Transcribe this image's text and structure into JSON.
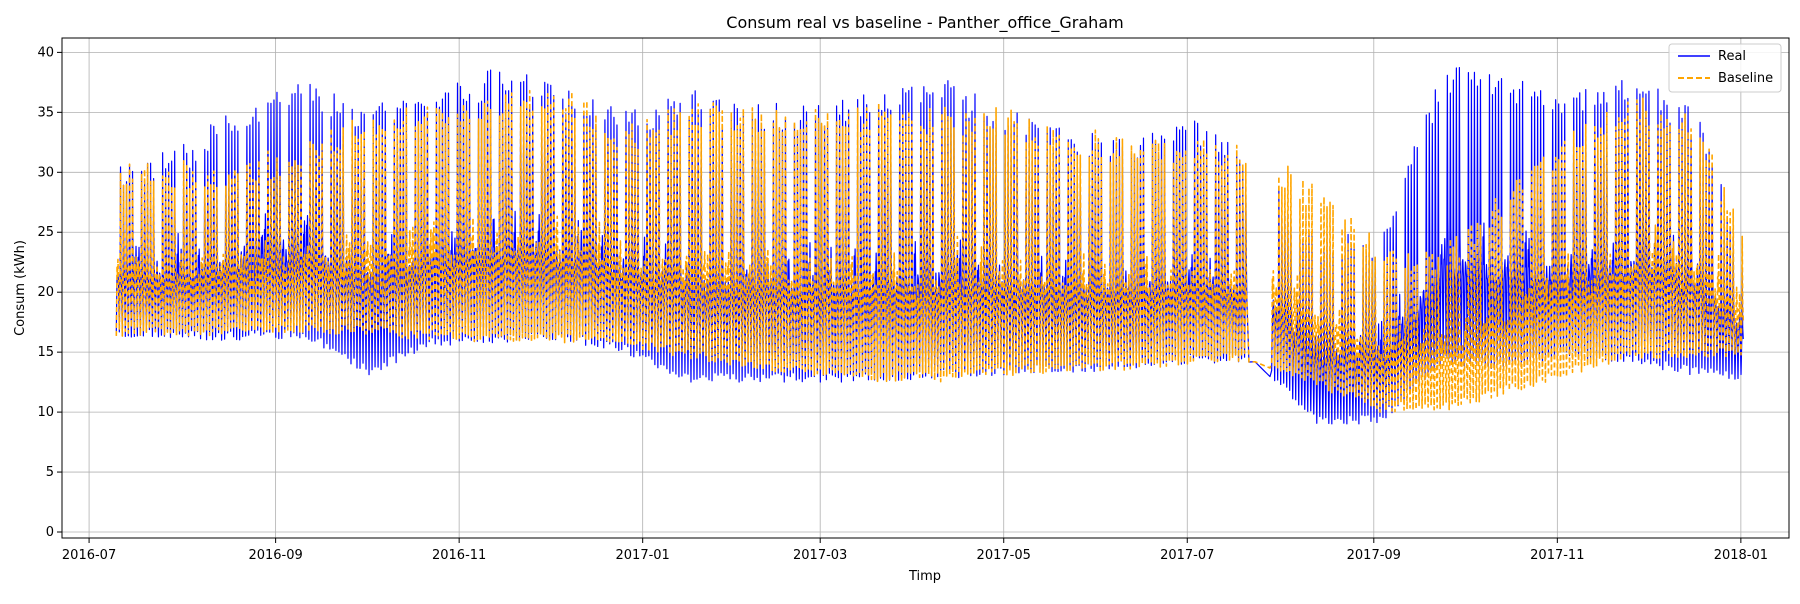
{
  "chart_data": {
    "type": "line",
    "title": "Consum real vs baseline - Panther_office_Graham",
    "xlabel": "Timp",
    "ylabel": "Consum (kWh)",
    "x_start": "2016-07-10",
    "x_end": "2018-01-01",
    "xlim": [
      "2016-06-22",
      "2018-01-17"
    ],
    "ylim": [
      -0.5,
      41.2
    ],
    "yticks": [
      0,
      5,
      10,
      15,
      20,
      25,
      30,
      35,
      40
    ],
    "xtick_labels": [
      "2016-07",
      "2016-09",
      "2016-11",
      "2017-01",
      "2017-03",
      "2017-05",
      "2017-07",
      "2017-09",
      "2017-11",
      "2018-01"
    ],
    "grid": true,
    "legend_position": "top-right",
    "series": [
      {
        "name": "Real",
        "color": "#0000ff",
        "style": "solid",
        "weekly": [
          {
            "date": "2016-07-10",
            "min": 16.3,
            "max": 31.0
          },
          {
            "date": "2016-07-31",
            "min": 16.0,
            "max": 32.2
          },
          {
            "date": "2016-08-21",
            "min": 16.0,
            "max": 36.0
          },
          {
            "date": "2016-09-11",
            "min": 16.2,
            "max": 38.0
          },
          {
            "date": "2016-10-02",
            "min": 13.0,
            "max": 35.5
          },
          {
            "date": "2016-10-23",
            "min": 15.5,
            "max": 37.0
          },
          {
            "date": "2016-11-13",
            "min": 15.8,
            "max": 38.7
          },
          {
            "date": "2016-12-04",
            "min": 16.0,
            "max": 37.5
          },
          {
            "date": "2016-12-25",
            "min": 15.0,
            "max": 35.0
          },
          {
            "date": "2017-01-15",
            "min": 12.5,
            "max": 37.0
          },
          {
            "date": "2017-02-05",
            "min": 12.5,
            "max": 36.0
          },
          {
            "date": "2017-02-26",
            "min": 12.5,
            "max": 35.5
          },
          {
            "date": "2017-03-19",
            "min": 12.5,
            "max": 37.0
          },
          {
            "date": "2017-04-09",
            "min": 12.8,
            "max": 38.0
          },
          {
            "date": "2017-04-30",
            "min": 13.0,
            "max": 35.5
          },
          {
            "date": "2017-05-21",
            "min": 13.3,
            "max": 33.5
          },
          {
            "date": "2017-06-11",
            "min": 13.5,
            "max": 33.0
          },
          {
            "date": "2017-07-02",
            "min": 14.0,
            "max": 34.5
          },
          {
            "date": "2017-07-23",
            "min": 14.2,
            "max": 31.0
          },
          {
            "date": "2017-08-13",
            "min": 9.0,
            "max": 25.0
          },
          {
            "date": "2017-09-03",
            "min": 9.0,
            "max": 25.0
          },
          {
            "date": "2017-09-24",
            "min": 14.0,
            "max": 39.0
          },
          {
            "date": "2017-10-15",
            "min": 13.5,
            "max": 38.0
          },
          {
            "date": "2017-11-05",
            "min": 14.5,
            "max": 36.5
          },
          {
            "date": "2017-11-26",
            "min": 14.0,
            "max": 38.5
          },
          {
            "date": "2017-12-17",
            "min": 13.0,
            "max": 35.0
          },
          {
            "date": "2018-01-01",
            "min": 12.7,
            "max": 24.0
          }
        ]
      },
      {
        "name": "Baseline",
        "color": "#ffa500",
        "style": "dashed",
        "weekly": [
          {
            "date": "2016-07-10",
            "min": 16.3,
            "max": 31.0
          },
          {
            "date": "2016-07-31",
            "min": 16.3,
            "max": 31.0
          },
          {
            "date": "2016-08-21",
            "min": 16.5,
            "max": 31.0
          },
          {
            "date": "2016-09-11",
            "min": 16.5,
            "max": 33.0
          },
          {
            "date": "2016-10-02",
            "min": 16.3,
            "max": 35.5
          },
          {
            "date": "2016-10-23",
            "min": 16.0,
            "max": 36.0
          },
          {
            "date": "2016-11-13",
            "min": 15.8,
            "max": 37.0
          },
          {
            "date": "2016-12-04",
            "min": 15.8,
            "max": 37.5
          },
          {
            "date": "2016-12-25",
            "min": 15.5,
            "max": 34.0
          },
          {
            "date": "2017-01-15",
            "min": 14.5,
            "max": 36.0
          },
          {
            "date": "2017-02-05",
            "min": 13.5,
            "max": 35.5
          },
          {
            "date": "2017-02-26",
            "min": 13.0,
            "max": 35.5
          },
          {
            "date": "2017-03-19",
            "min": 12.5,
            "max": 36.0
          },
          {
            "date": "2017-04-09",
            "min": 12.5,
            "max": 35.5
          },
          {
            "date": "2017-04-30",
            "min": 13.0,
            "max": 35.5
          },
          {
            "date": "2017-05-21",
            "min": 13.3,
            "max": 34.0
          },
          {
            "date": "2017-06-11",
            "min": 13.5,
            "max": 33.0
          },
          {
            "date": "2017-07-02",
            "min": 14.0,
            "max": 33.0
          },
          {
            "date": "2017-07-23",
            "min": 14.2,
            "max": 32.5
          },
          {
            "date": "2017-08-13",
            "min": 12.0,
            "max": 29.0
          },
          {
            "date": "2017-09-03",
            "min": 10.0,
            "max": 24.0
          },
          {
            "date": "2017-09-24",
            "min": 10.0,
            "max": 24.0
          },
          {
            "date": "2017-10-15",
            "min": 11.5,
            "max": 29.0
          },
          {
            "date": "2017-11-05",
            "min": 13.0,
            "max": 34.0
          },
          {
            "date": "2017-11-26",
            "min": 14.5,
            "max": 36.5
          },
          {
            "date": "2017-12-17",
            "min": 14.5,
            "max": 35.0
          },
          {
            "date": "2018-01-01",
            "min": 14.5,
            "max": 25.0
          }
        ]
      }
    ]
  }
}
